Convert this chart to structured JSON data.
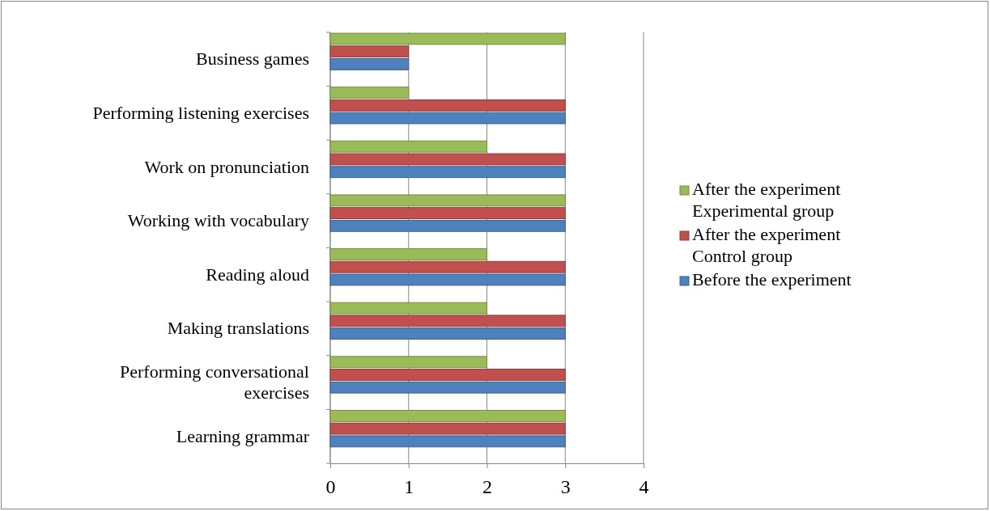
{
  "chart_data": {
    "type": "bar",
    "orientation": "horizontal",
    "categories": [
      "Business games",
      "Performing listening exercises",
      "Work on pronunciation",
      "Working with vocabulary",
      "Reading aloud",
      "Making translations",
      "Performing conversational exercises",
      "Learning grammar"
    ],
    "series": [
      {
        "name": "Before the experiment",
        "color": "#4f81bd",
        "values": [
          1,
          3,
          3,
          3,
          3,
          3,
          3,
          3
        ]
      },
      {
        "name": "After the experiment Control group",
        "color": "#c0504d",
        "values": [
          1,
          3,
          3,
          3,
          3,
          3,
          3,
          3
        ]
      },
      {
        "name": "After the experiment Experimental group",
        "color": "#9bbb59",
        "values": [
          3,
          1,
          2,
          3,
          2,
          2,
          2,
          3
        ]
      }
    ],
    "xlim": [
      0,
      4
    ],
    "xticks": [
      0,
      1,
      2,
      3,
      4
    ],
    "grid": "x",
    "legend": "right"
  }
}
